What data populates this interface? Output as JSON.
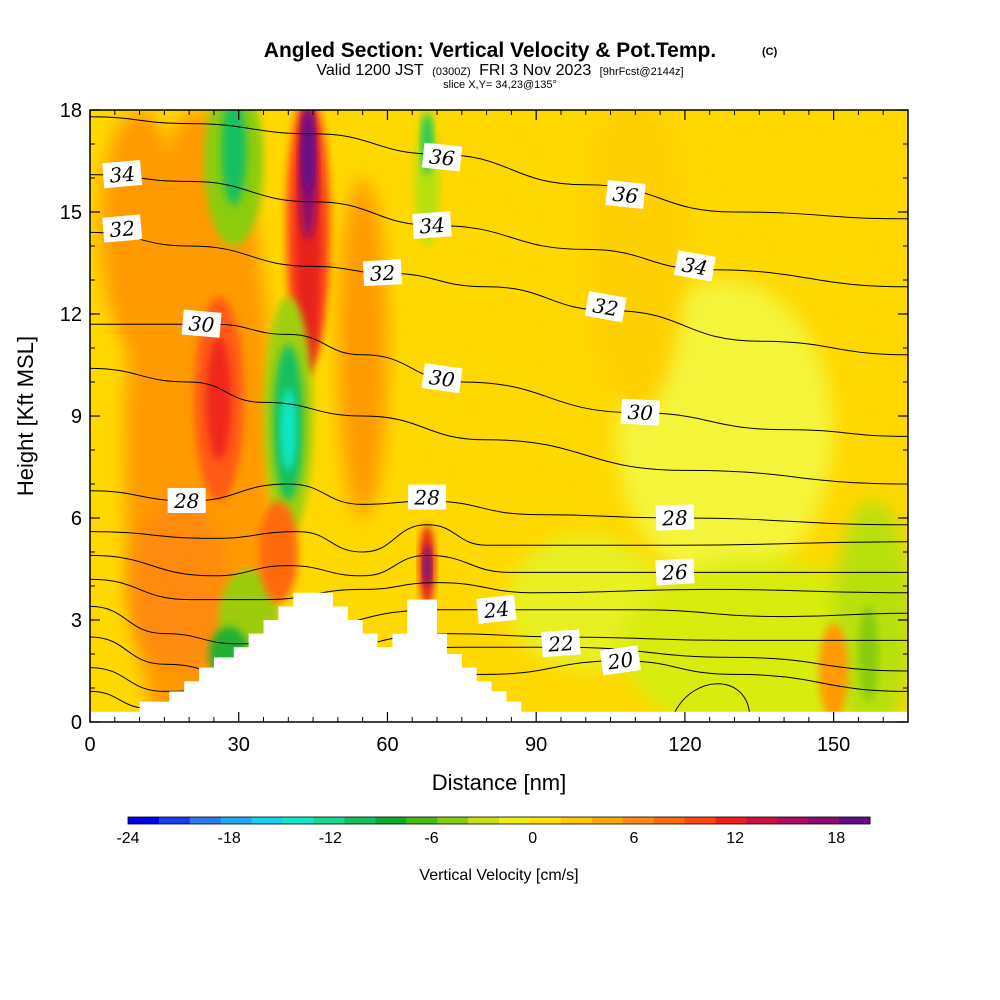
{
  "chart_data": {
    "type": "heatmap",
    "title": "Angled Section: Vertical Velocity & Pot.Temp.",
    "title_mark": "(C)",
    "subtitle": {
      "valid_prefix": "Valid 1200 JST",
      "utc": "(0300Z)",
      "date": "FRI 3 Nov 2023",
      "forecast": "[9hrFcst@2144z]",
      "slice": "slice X,Y= 34,23@135°"
    },
    "xlabel": "Distance [nm]",
    "ylabel": "Height [Kft MSL]",
    "xlim": [
      0,
      165
    ],
    "ylim": [
      0,
      18
    ],
    "x_ticks": [
      0,
      30,
      60,
      90,
      120,
      150
    ],
    "x_tick_labels": [
      "0",
      "30",
      "60",
      "90",
      "120",
      "150"
    ],
    "y_ticks": [
      0,
      3,
      6,
      9,
      12,
      15,
      18
    ],
    "y_tick_labels": [
      "0",
      "3",
      "6",
      "9",
      "12",
      "15",
      "18"
    ],
    "colorbar": {
      "label": "Vertical Velocity [cm/s]",
      "min": -24,
      "max": 20,
      "ticks": [
        "-24",
        "-18",
        "-12",
        "-6",
        "0",
        "6",
        "12",
        "18"
      ],
      "colors": [
        "#0000e6",
        "#1a3cf0",
        "#2e78f0",
        "#21a8f5",
        "#18d0f0",
        "#10e8c8",
        "#18d890",
        "#12c060",
        "#10aa30",
        "#48bb18",
        "#88cc10",
        "#c8e010",
        "#f0f010",
        "#ffe000",
        "#ffc800",
        "#ffaa00",
        "#ff8c10",
        "#ff6a10",
        "#ff4414",
        "#f01e1e",
        "#d01040",
        "#b00c60",
        "#8c0c70",
        "#640c88"
      ]
    },
    "contour_labels": [
      {
        "text": "34",
        "x": 6.5,
        "y": 16.1,
        "rot": -5
      },
      {
        "text": "32",
        "x": 6.5,
        "y": 14.5,
        "rot": -5
      },
      {
        "text": "36",
        "x": 71,
        "y": 16.6,
        "rot": 6
      },
      {
        "text": "34",
        "x": 69,
        "y": 14.6,
        "rot": -4
      },
      {
        "text": "32",
        "x": 59,
        "y": 13.2,
        "rot": -3
      },
      {
        "text": "30",
        "x": 22.5,
        "y": 11.7,
        "rot": 5
      },
      {
        "text": "36",
        "x": 108,
        "y": 15.5,
        "rot": 6
      },
      {
        "text": "34",
        "x": 122,
        "y": 13.4,
        "rot": 10
      },
      {
        "text": "32",
        "x": 104,
        "y": 12.2,
        "rot": 10
      },
      {
        "text": "30",
        "x": 71,
        "y": 10.1,
        "rot": 8
      },
      {
        "text": "30",
        "x": 111,
        "y": 9.1,
        "rot": 3
      },
      {
        "text": "28",
        "x": 19.5,
        "y": 6.5,
        "rot": 0
      },
      {
        "text": "28",
        "x": 68,
        "y": 6.6,
        "rot": 0
      },
      {
        "text": "28",
        "x": 118,
        "y": 6.0,
        "rot": -2
      },
      {
        "text": "26",
        "x": 118,
        "y": 4.4,
        "rot": -3
      },
      {
        "text": "24",
        "x": 82,
        "y": 3.3,
        "rot": -6
      },
      {
        "text": "22",
        "x": 95,
        "y": 2.3,
        "rot": -4
      },
      {
        "text": "20",
        "x": 107,
        "y": 1.8,
        "rot": -8
      }
    ],
    "terrain": [
      [
        10,
        0.3
      ],
      [
        10,
        0.6
      ],
      [
        16,
        0.6
      ],
      [
        16,
        0.9
      ],
      [
        19,
        0.9
      ],
      [
        19,
        1.2
      ],
      [
        22,
        1.2
      ],
      [
        22,
        1.6
      ],
      [
        25,
        1.6
      ],
      [
        25,
        1.9
      ],
      [
        29,
        1.9
      ],
      [
        29,
        2.2
      ],
      [
        32,
        2.2
      ],
      [
        32,
        2.6
      ],
      [
        35,
        2.6
      ],
      [
        35,
        3.0
      ],
      [
        38,
        3.0
      ],
      [
        38,
        3.4
      ],
      [
        41,
        3.4
      ],
      [
        41,
        3.8
      ],
      [
        49,
        3.8
      ],
      [
        49,
        3.4
      ],
      [
        52,
        3.4
      ],
      [
        52,
        3.0
      ],
      [
        55,
        3.0
      ],
      [
        55,
        2.6
      ],
      [
        58,
        2.6
      ],
      [
        58,
        2.2
      ],
      [
        61,
        2.2
      ],
      [
        61,
        2.6
      ],
      [
        64,
        2.6
      ],
      [
        64,
        3.6
      ],
      [
        70,
        3.6
      ],
      [
        70,
        2.6
      ],
      [
        72,
        2.6
      ],
      [
        72,
        2.0
      ],
      [
        75,
        2.0
      ],
      [
        75,
        1.6
      ],
      [
        78,
        1.6
      ],
      [
        78,
        1.2
      ],
      [
        81,
        1.2
      ],
      [
        81,
        0.9
      ],
      [
        84,
        0.9
      ],
      [
        84,
        0.6
      ],
      [
        87,
        0.6
      ],
      [
        87,
        0.3
      ]
    ],
    "theta_levels": [
      20,
      22,
      24,
      26,
      28,
      30,
      32,
      34,
      36
    ]
  }
}
